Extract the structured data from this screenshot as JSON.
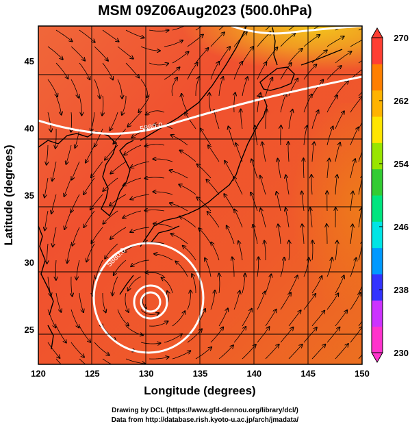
{
  "title": "MSM 09Z06Aug2023 (500.0hPa)",
  "axes": {
    "xlabel": "Longitude (degrees)",
    "ylabel": "Latitude  (degrees)",
    "x_ticks": [
      "120",
      "125",
      "130",
      "135",
      "140",
      "145",
      "150"
    ],
    "y_ticks": [
      "25",
      "30",
      "35",
      "40",
      "45"
    ],
    "x_range": [
      120,
      150
    ],
    "y_range": [
      22.4,
      47.6
    ]
  },
  "colorbar": {
    "labels": [
      "270",
      "262",
      "254",
      "246",
      "238",
      "230"
    ],
    "range": [
      230,
      270
    ],
    "colors": [
      "#ff33cc",
      "#cc33ff",
      "#3333ff",
      "#0099ff",
      "#00e5e5",
      "#00e57f",
      "#33cc33",
      "#99e500",
      "#ffe500",
      "#ffb300",
      "#ff7f00",
      "#ff3f33"
    ]
  },
  "contours": [
    {
      "label": "5880.0",
      "lon": 129.5,
      "lat": 41.0
    },
    {
      "label": "5880.0",
      "lon": 127.0,
      "lat": 30.5
    }
  ],
  "colors": {
    "field_warm": "#f24a3c",
    "field_orange": "#ee6a1e",
    "field_yellow": "#f2c81e",
    "coast": "#000000",
    "contour": "#ffffff"
  },
  "credits": {
    "line1": "Drawing by DCL (https://www.gfd-dennou.org/library/dcl/)",
    "line2": "Data from http://database.rish.kyoto-u.ac.jp/arch/jmadata/"
  }
}
